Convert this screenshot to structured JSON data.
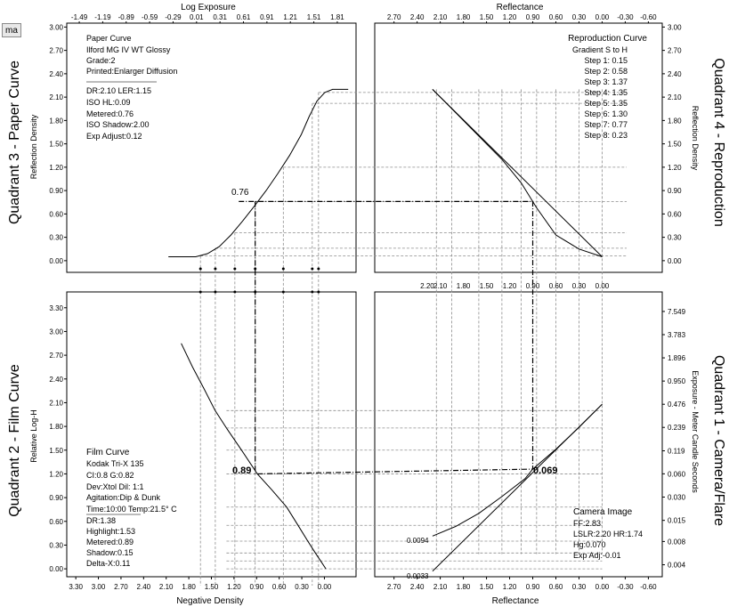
{
  "toolbar": {
    "button_label": "ma"
  },
  "quadrant_titles": {
    "q3": "Quadrant 3 - Paper Curve",
    "q4": "Quadrant 4 - Reproduction",
    "q2": "Quadrant 2 - Film Curve",
    "q1": "Quadrant 1 - Camera/Flare"
  },
  "info": {
    "paper": [
      "Paper Curve",
      "Ilford MG IV WT  Glossy",
      "Grade:2",
      "Printed:Enlarger Diffusion",
      "",
      "DR:2.10  LER:1.15",
      "ISO HL:0.09",
      "Metered:0.76",
      "ISO Shadow:2.00",
      "Exp Adjust:0.12"
    ],
    "reproduction": [
      "Reproduction Curve",
      "Gradient S to H",
      "Step 1: 0.15",
      "Step 2: 0.58",
      "Step 3: 1.37",
      "Step 4: 1.35",
      "Step 5: 1.35",
      "Step 6: 1.30",
      "Step 7: 0.77",
      "Step 8: 0.23"
    ],
    "film": [
      "Film Curve",
      "Kodak Tri-X 135",
      "CI:0.8  G:0.82",
      "Dev:Xtol  Dil: 1:1",
      "Agitation:Dip & Dunk",
      "Time:10:00  Temp:21.5° C",
      "",
      "DR:1.38",
      "Highlight:1.53",
      "Metered:0.89",
      "Shadow:0.15",
      "Delta-X:0.11"
    ],
    "camera": [
      "Camera Image",
      "FF:2.83",
      "LSLR:2.20 HR:1.74",
      "Hg:0.070",
      "Exp Adj:-0.01"
    ]
  },
  "annotations": {
    "paper_metered": "0.76",
    "film_metered": "0.89",
    "camera_metered": "0.069",
    "flare_low": "0.0094",
    "flare_min": "0.0033"
  },
  "colors": {
    "line": "#000000",
    "grid": "#8c8c8c",
    "background": "#ffffff"
  },
  "chart_data": [
    {
      "id": "q3",
      "type": "line",
      "title": "Paper Curve",
      "xlabel": "Log Exposure",
      "ylabel": "Reflection Density",
      "xlim": [
        -1.65,
        2.05
      ],
      "ylim": [
        -0.15,
        3.05
      ],
      "x_ticks": [
        "-1.49",
        "-1.19",
        "-0.89",
        "-0.59",
        "-0.29",
        "0.01",
        "0.31",
        "0.61",
        "0.91",
        "1.21",
        "1.51",
        "1.81"
      ],
      "x_tick_values": [
        -1.49,
        -1.19,
        -0.89,
        -0.59,
        -0.29,
        0.01,
        0.31,
        0.61,
        0.91,
        1.21,
        1.51,
        1.81
      ],
      "y_ticks": [
        "0.00",
        "0.30",
        "0.60",
        "0.90",
        "1.20",
        "1.50",
        "1.80",
        "2.10",
        "2.40",
        "2.70",
        "3.00"
      ],
      "y_tick_values": [
        0,
        0.3,
        0.6,
        0.9,
        1.2,
        1.5,
        1.8,
        2.1,
        2.4,
        2.7,
        3.0
      ],
      "series": [
        {
          "x": [
            -0.35,
            0.0,
            0.15,
            0.3,
            0.45,
            0.6,
            0.75,
            0.9,
            1.05,
            1.2,
            1.35,
            1.45,
            1.55,
            1.65,
            1.75,
            1.95
          ],
          "y": [
            0.05,
            0.05,
            0.09,
            0.18,
            0.33,
            0.51,
            0.7,
            0.9,
            1.12,
            1.35,
            1.62,
            1.85,
            2.05,
            2.16,
            2.2,
            2.2
          ]
        }
      ],
      "guide_points": [
        [
          0.06,
          0.06
        ],
        [
          0.25,
          0.16
        ],
        [
          0.5,
          0.36
        ],
        [
          0.76,
          0.76
        ],
        [
          1.12,
          1.2
        ],
        [
          1.49,
          2.02
        ],
        [
          1.57,
          2.16
        ]
      ]
    },
    {
      "id": "q4",
      "type": "line",
      "title": "Reproduction Curve",
      "xlabel": "Reflectance",
      "ylabel": "Reflection Density",
      "xlim": [
        2.95,
        -0.78
      ],
      "ylim": [
        -0.15,
        3.05
      ],
      "x_ticks": [
        "2.70",
        "2.40",
        "2.10",
        "1.80",
        "1.50",
        "1.20",
        "0.90",
        "0.60",
        "0.30",
        "0.00",
        "-0.30",
        "-0.60"
      ],
      "x_tick_values": [
        2.7,
        2.4,
        2.1,
        1.8,
        1.5,
        1.2,
        0.9,
        0.6,
        0.3,
        0.0,
        -0.3,
        -0.6
      ],
      "y_ticks": [
        "0.00",
        "0.30",
        "0.60",
        "0.90",
        "1.20",
        "1.50",
        "1.80",
        "2.10",
        "2.40",
        "2.70",
        "3.00"
      ],
      "y_tick_values": [
        0,
        0.3,
        0.6,
        0.9,
        1.2,
        1.5,
        1.8,
        2.1,
        2.4,
        2.7,
        3.0
      ],
      "series": [
        {
          "name": "Reproduction",
          "x": [
            2.2,
            1.95,
            1.6,
            1.3,
            1.05,
            0.85,
            0.6,
            0.3,
            0.0
          ],
          "y": [
            2.2,
            1.95,
            1.6,
            1.3,
            1.0,
            0.68,
            0.33,
            0.15,
            0.05
          ]
        },
        {
          "name": "Ideal",
          "x": [
            2.2,
            0.0
          ],
          "y": [
            2.2,
            0.05
          ]
        }
      ]
    },
    {
      "id": "q2",
      "type": "line",
      "title": "Film Curve",
      "xlabel": "Negative Density",
      "ylabel": "Relative Log-H",
      "xlim": [
        3.42,
        -0.42
      ],
      "ylim": [
        -0.1,
        3.5
      ],
      "x_ticks": [
        "3.30",
        "3.00",
        "2.70",
        "2.40",
        "2.10",
        "1.80",
        "1.50",
        "1.20",
        "0.90",
        "0.60",
        "0.30",
        "0.00"
      ],
      "x_tick_values": [
        3.3,
        3.0,
        2.7,
        2.4,
        2.1,
        1.8,
        1.5,
        1.2,
        0.9,
        0.6,
        0.3,
        0.0
      ],
      "y_ticks": [
        "0.00",
        "0.30",
        "0.60",
        "0.90",
        "1.20",
        "1.50",
        "1.80",
        "2.10",
        "2.40",
        "2.70",
        "3.00",
        "3.30"
      ],
      "y_tick_values": [
        0,
        0.3,
        0.6,
        0.9,
        1.2,
        1.5,
        1.8,
        2.1,
        2.4,
        2.7,
        3.0,
        3.3
      ],
      "series": [
        {
          "x": [
            1.9,
            1.75,
            1.6,
            1.45,
            1.3,
            1.1,
            0.89,
            0.7,
            0.5,
            0.35,
            0.22,
            0.12,
            0.05,
            -0.02
          ],
          "y": [
            2.85,
            2.55,
            2.28,
            2.0,
            1.78,
            1.5,
            1.2,
            1.0,
            0.78,
            0.55,
            0.35,
            0.2,
            0.1,
            0.0
          ]
        }
      ]
    },
    {
      "id": "q1",
      "type": "line",
      "title": "Camera Image",
      "xlabel": "Reflectance",
      "ylabel": "Exposure - Meter Candle Seconds",
      "xlim": [
        2.95,
        -0.78
      ],
      "ylim": [
        0.0028,
        13.5
      ],
      "y_scale": "log",
      "x_ticks": [
        "2.70",
        "2.40",
        "2.10",
        "1.80",
        "1.50",
        "1.20",
        "0.90",
        "0.60",
        "0.30",
        "0.00",
        "-0.30",
        "-0.60"
      ],
      "x_tick_values": [
        2.7,
        2.4,
        2.1,
        1.8,
        1.5,
        1.2,
        0.9,
        0.6,
        0.3,
        0.0,
        -0.3,
        -0.6
      ],
      "top_ticks": [
        "2.20",
        "2.10",
        "1.80",
        "1.50",
        "1.20",
        "0.90",
        "0.60",
        "0.30",
        "0.00"
      ],
      "top_tick_values": [
        2.2,
        2.1,
        1.8,
        1.5,
        1.2,
        0.9,
        0.6,
        0.3,
        0.0
      ],
      "y_ticks": [
        "0.004",
        "0.008",
        "0.015",
        "0.030",
        "0.060",
        "0.119",
        "0.239",
        "0.476",
        "0.950",
        "1.896",
        "3.783",
        "7.549"
      ],
      "y_tick_values": [
        0.004,
        0.008,
        0.015,
        0.03,
        0.06,
        0.119,
        0.239,
        0.476,
        0.95,
        1.896,
        3.783,
        7.549
      ],
      "series": [
        {
          "name": "With flare",
          "x": [
            2.2,
            1.9,
            1.6,
            1.3,
            1.0,
            0.9,
            0.6,
            0.3,
            0.0
          ],
          "y": [
            0.0094,
            0.0125,
            0.0185,
            0.0305,
            0.052,
            0.069,
            0.125,
            0.24,
            0.476
          ]
        },
        {
          "name": "Without flare",
          "x": [
            2.2,
            0.0
          ],
          "y": [
            0.0033,
            0.476
          ]
        }
      ]
    }
  ]
}
